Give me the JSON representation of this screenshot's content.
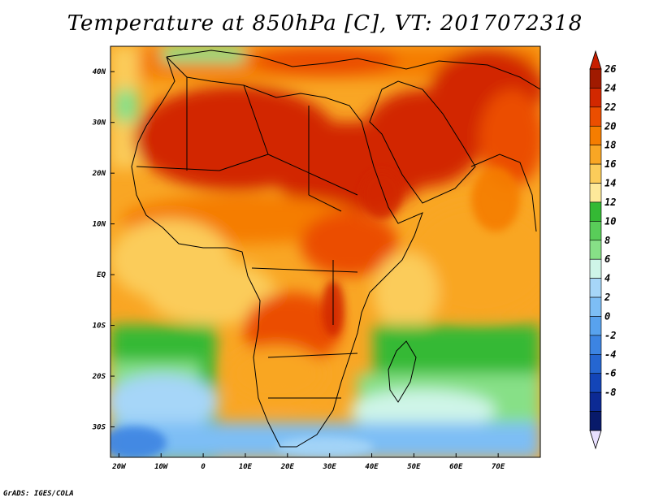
{
  "title": "Temperature at 850hPa [C], VT: 2017072318",
  "credit": "GrADS: IGES/COLA",
  "map": {
    "region": "Africa",
    "x_ticks": [
      "20W",
      "10W",
      "0",
      "10E",
      "20E",
      "30E",
      "40E",
      "50E",
      "60E",
      "70E"
    ],
    "y_ticks": [
      "40N",
      "30N",
      "20N",
      "10N",
      "EQ",
      "10S",
      "20S",
      "30S"
    ],
    "lon_range": [
      -22,
      80
    ],
    "lat_range": [
      -36,
      45
    ]
  },
  "colorbar": {
    "labels": [
      "26",
      "24",
      "22",
      "20",
      "18",
      "16",
      "14",
      "12",
      "10",
      "8",
      "6",
      "4",
      "2",
      "0",
      "-2",
      "-4",
      "-6",
      "-8"
    ],
    "colors": [
      "#a01a00",
      "#d22800",
      "#eb4e00",
      "#f57d00",
      "#f9a624",
      "#fbcc5a",
      "#fde99a",
      "#34b934",
      "#59cd59",
      "#87e087",
      "#cff5e8",
      "#a6d6f8",
      "#7dbef5",
      "#58a2ee",
      "#3c84e2",
      "#2566d1",
      "#1345b8",
      "#0c2a94",
      "#081a6a"
    ],
    "top_arrow_color": "#c81e00",
    "bottom_arrow_color": "#e8e0ff"
  }
}
